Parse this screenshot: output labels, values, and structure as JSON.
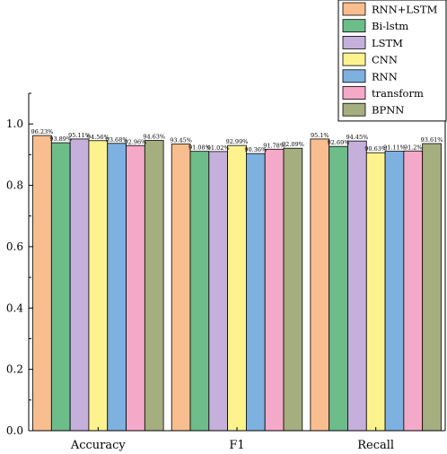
{
  "chart_data": {
    "type": "bar",
    "categories": [
      "Accuracy",
      "F1",
      "Recall"
    ],
    "series": [
      {
        "name": "RNN+LSTM",
        "color": "#f9be8f",
        "values": [
          0.9623,
          0.9345,
          0.951
        ],
        "labels": [
          "96.23%",
          "93.45%",
          "95.1%"
        ]
      },
      {
        "name": "Bi-lstm",
        "color": "#6dbd8b",
        "values": [
          0.9389,
          0.9108,
          0.9269
        ],
        "labels": [
          "93.89%",
          "91.08%",
          "92.69%"
        ]
      },
      {
        "name": "LSTM",
        "color": "#c5b0db",
        "values": [
          0.9511,
          0.9102,
          0.9445
        ],
        "labels": [
          "95.11%",
          "91.02%",
          "94.45%"
        ]
      },
      {
        "name": "CNN",
        "color": "#fdf38e",
        "values": [
          0.9456,
          0.9299,
          0.9063
        ],
        "labels": [
          "94.56%",
          "92.99%",
          "90.63%"
        ]
      },
      {
        "name": "RNN",
        "color": "#7eb1e0",
        "values": [
          0.9368,
          0.9036,
          0.9111
        ],
        "labels": [
          "93.68%",
          "90.36%",
          "91.11%"
        ]
      },
      {
        "name": "transform",
        "color": "#f5a9c9",
        "values": [
          0.9296,
          0.9178,
          0.912
        ],
        "labels": [
          "92.96%",
          "91.78%",
          "91.2%"
        ]
      },
      {
        "name": "BPNN",
        "color": "#a5ae7f",
        "values": [
          0.9463,
          0.9209,
          0.9361
        ],
        "labels": [
          "94.63%",
          "92.09%",
          "93.61%"
        ]
      }
    ],
    "ylim": [
      0,
      1.1
    ],
    "yticks": [
      0.0,
      0.2,
      0.4,
      0.6,
      0.8,
      1.0
    ],
    "ytick_labels": [
      "0.0",
      "0.2",
      "0.4",
      "0.6",
      "0.8",
      "1.0"
    ],
    "legend": "top-right",
    "grid": false
  }
}
